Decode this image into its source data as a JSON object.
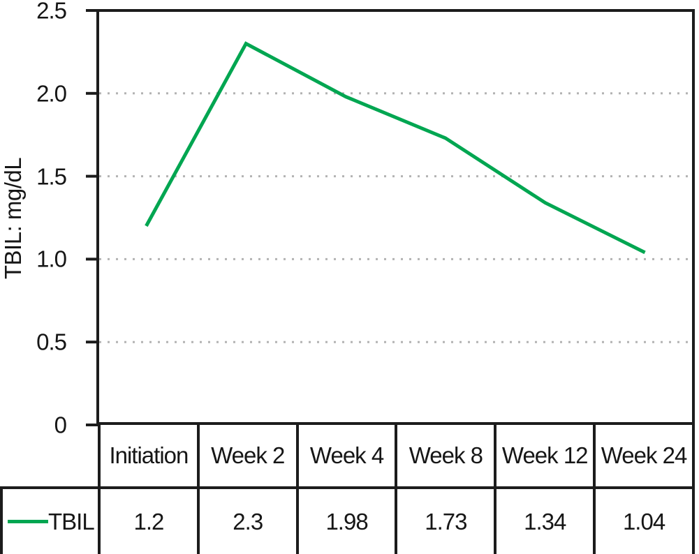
{
  "chart_data": {
    "type": "line",
    "title": "",
    "xlabel": "",
    "ylabel": "TBIL: mg/dL",
    "categories": [
      "Initiation",
      "Week 2",
      "Week 4",
      "Week 8",
      "Week 12",
      "Week 24"
    ],
    "series": [
      {
        "name": "TBIL",
        "color": "#00a651",
        "values": [
          1.2,
          2.3,
          1.98,
          1.73,
          1.34,
          1.04
        ]
      }
    ],
    "ylim": [
      0,
      2.5
    ],
    "y_ticks": [
      {
        "value": 2.5,
        "label": "2.5"
      },
      {
        "value": 2.0,
        "label": "2.0"
      },
      {
        "value": 1.5,
        "label": "1.5"
      },
      {
        "value": 1.0,
        "label": "1.0"
      },
      {
        "value": 0.5,
        "label": "0.5"
      },
      {
        "value": 0,
        "label": "0"
      }
    ],
    "grid": "horizontal dotted gridlines at 0.5 intervals",
    "legend_position": "bottom-left cell of data table",
    "data_table_shown": true
  },
  "colors": {
    "line": "#00a651",
    "grid": "#b3b3b3",
    "axis": "#1c1c1c",
    "background": "#ffffff",
    "text": "#161616"
  }
}
